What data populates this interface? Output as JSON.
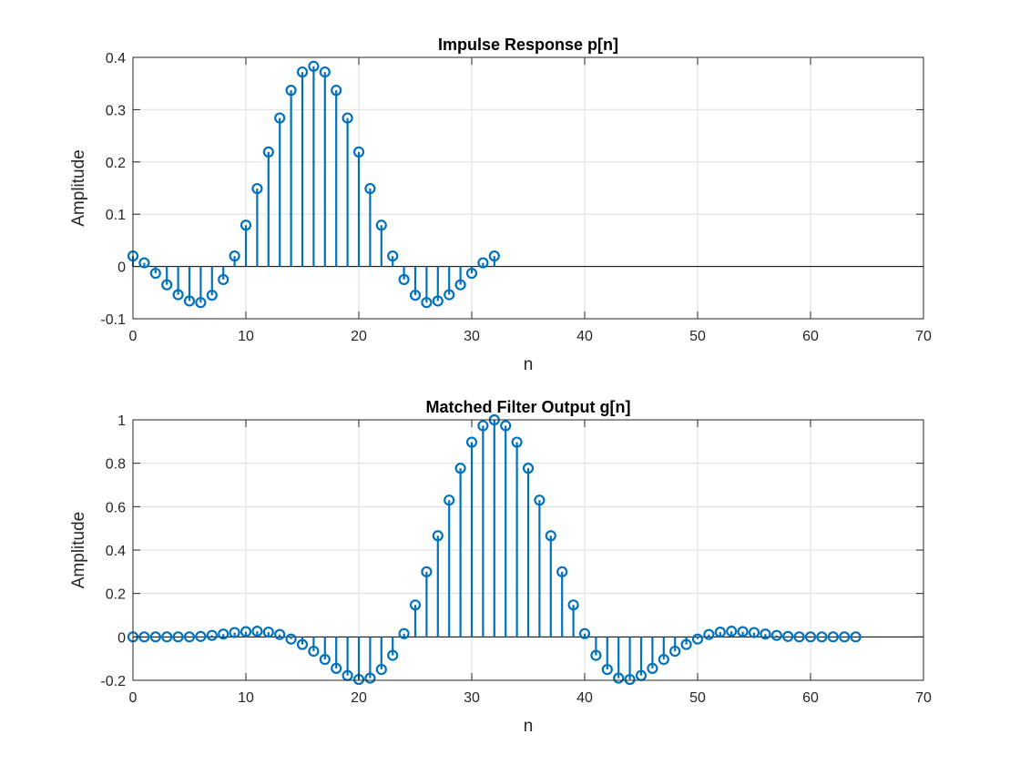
{
  "chart_data": [
    {
      "type": "stem",
      "title": "Impulse Response p[n]",
      "xlabel": "n",
      "ylabel": "Amplitude",
      "xlim": [
        0,
        70
      ],
      "ylim": [
        -0.1,
        0.4
      ],
      "xticks": [
        0,
        10,
        20,
        30,
        40,
        50,
        60,
        70
      ],
      "yticks": [
        -0.1,
        0,
        0.1,
        0.2,
        0.3,
        0.4
      ],
      "xtick_labels": [
        "0",
        "10",
        "20",
        "30",
        "40",
        "50",
        "60",
        "70"
      ],
      "ytick_labels": [
        "-0.1",
        "0",
        "0.1",
        "0.2",
        "0.3",
        "0.4"
      ],
      "grid": true,
      "color": "#0072BD",
      "x": [
        0,
        1,
        2,
        3,
        4,
        5,
        6,
        7,
        8,
        9,
        10,
        11,
        12,
        13,
        14,
        15,
        16,
        17,
        18,
        19,
        20,
        21,
        22,
        23,
        24,
        25,
        26,
        27,
        28,
        29,
        30,
        31,
        32
      ],
      "y": [
        0.02,
        0.007,
        -0.013,
        -0.035,
        -0.054,
        -0.066,
        -0.069,
        -0.055,
        -0.025,
        0.02,
        0.079,
        0.149,
        0.219,
        0.284,
        0.337,
        0.372,
        0.383,
        0.372,
        0.337,
        0.284,
        0.219,
        0.149,
        0.079,
        0.02,
        -0.025,
        -0.055,
        -0.069,
        -0.066,
        -0.054,
        -0.035,
        -0.013,
        0.007,
        0.02
      ]
    },
    {
      "type": "stem",
      "title": "Matched Filter Output g[n]",
      "xlabel": "n",
      "ylabel": "Amplitude",
      "xlim": [
        0,
        70
      ],
      "ylim": [
        -0.2,
        1
      ],
      "xticks": [
        0,
        10,
        20,
        30,
        40,
        50,
        60,
        70
      ],
      "yticks": [
        -0.2,
        0,
        0.2,
        0.4,
        0.6,
        0.8,
        1
      ],
      "xtick_labels": [
        "0",
        "10",
        "20",
        "30",
        "40",
        "50",
        "60",
        "70"
      ],
      "ytick_labels": [
        "-0.2",
        "0",
        "0.2",
        "0.4",
        "0.6",
        "0.8",
        "1"
      ],
      "grid": true,
      "color": "#0072BD",
      "x": [
        0,
        1,
        2,
        3,
        4,
        5,
        6,
        7,
        8,
        9,
        10,
        11,
        12,
        13,
        14,
        15,
        16,
        17,
        18,
        19,
        20,
        21,
        22,
        23,
        24,
        25,
        26,
        27,
        28,
        29,
        30,
        31,
        32,
        33,
        34,
        35,
        36,
        37,
        38,
        39,
        40,
        41,
        42,
        43,
        44,
        45,
        46,
        47,
        48,
        49,
        50,
        51,
        52,
        53,
        54,
        55,
        56,
        57,
        58,
        59,
        60,
        61,
        62,
        63,
        64
      ],
      "y": [
        0,
        0,
        0,
        0,
        0,
        0,
        0.002,
        0.007,
        0.013,
        0.02,
        0.024,
        0.026,
        0.022,
        0.011,
        -0.01,
        -0.035,
        -0.066,
        -0.104,
        -0.145,
        -0.178,
        -0.196,
        -0.19,
        -0.15,
        -0.085,
        0.015,
        0.147,
        0.3,
        0.466,
        0.63,
        0.777,
        0.897,
        0.973,
        1.0,
        0.973,
        0.897,
        0.777,
        0.63,
        0.466,
        0.3,
        0.147,
        0.015,
        -0.085,
        -0.15,
        -0.19,
        -0.196,
        -0.178,
        -0.145,
        -0.104,
        -0.066,
        -0.035,
        -0.01,
        0.011,
        0.022,
        0.026,
        0.024,
        0.02,
        0.013,
        0.007,
        0.002,
        0,
        0,
        0,
        0,
        0,
        0
      ]
    }
  ]
}
